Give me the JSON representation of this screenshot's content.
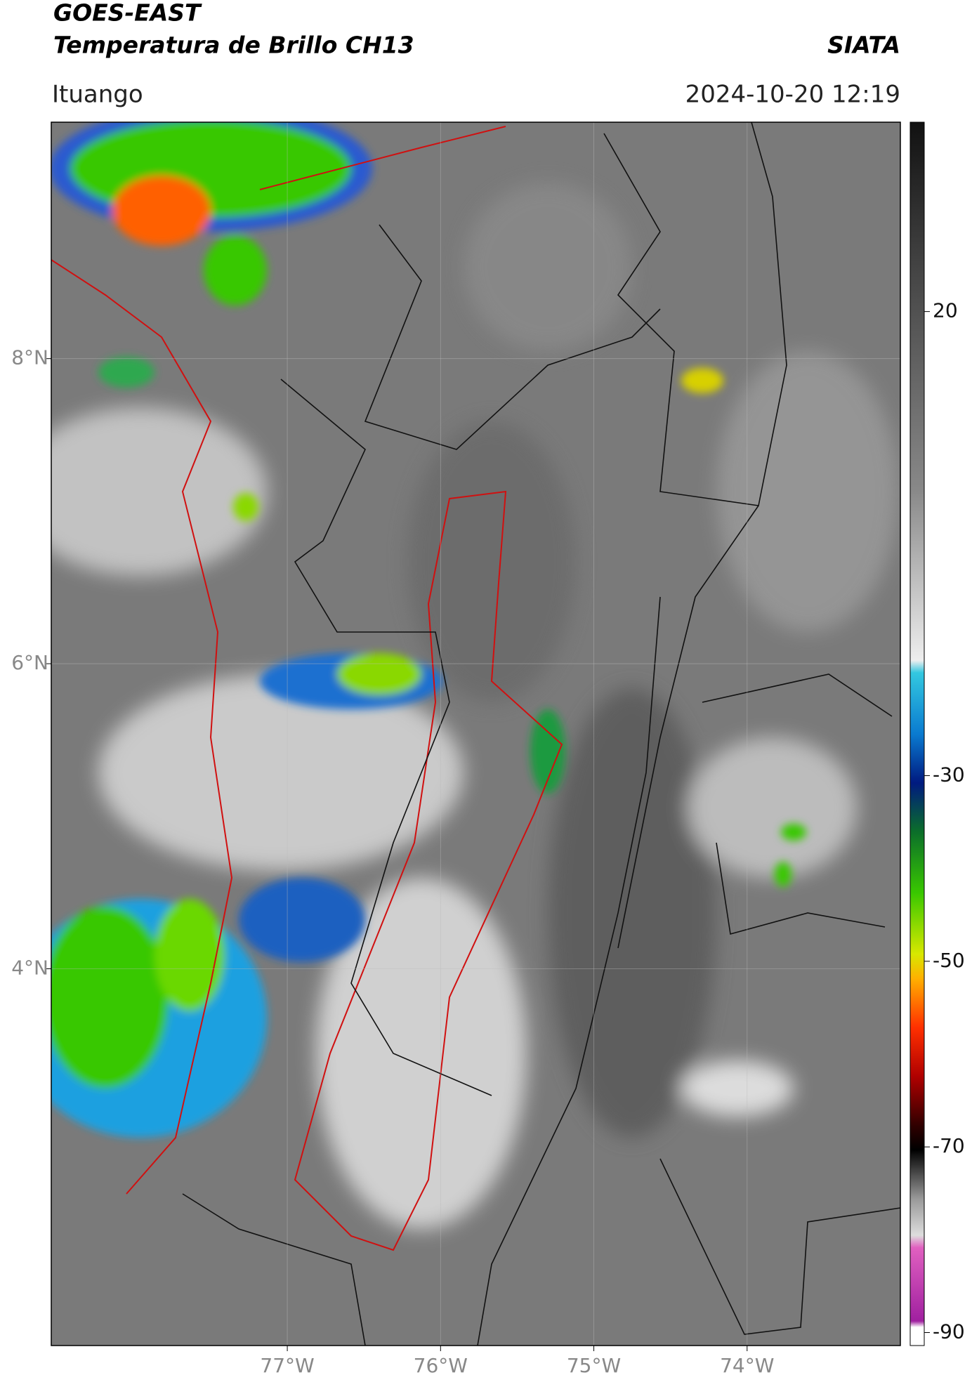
{
  "header": {
    "title": "GOES-EAST",
    "subtitle": "Temperatura de Brillo CH13",
    "agency": "SIATA",
    "location": "Ituango",
    "datetime": "2024-10-20 12:19"
  },
  "map": {
    "xlim": [
      -78.54,
      -73.0
    ],
    "ylim": [
      1.53,
      9.55
    ],
    "xticks": [
      {
        "value": -77,
        "label": "77°W"
      },
      {
        "value": -76,
        "label": "76°W"
      },
      {
        "value": -75,
        "label": "75°W"
      },
      {
        "value": -74,
        "label": "74°W"
      }
    ],
    "yticks": [
      {
        "value": 8,
        "label": "8°N"
      },
      {
        "value": 6,
        "label": "6°N"
      },
      {
        "value": 4,
        "label": "4°N"
      }
    ],
    "grid": true
  },
  "colorbar": {
    "lim": [
      -91.4,
      40.4
    ],
    "ticks": [
      20,
      -30,
      -50,
      -70,
      -90
    ]
  }
}
